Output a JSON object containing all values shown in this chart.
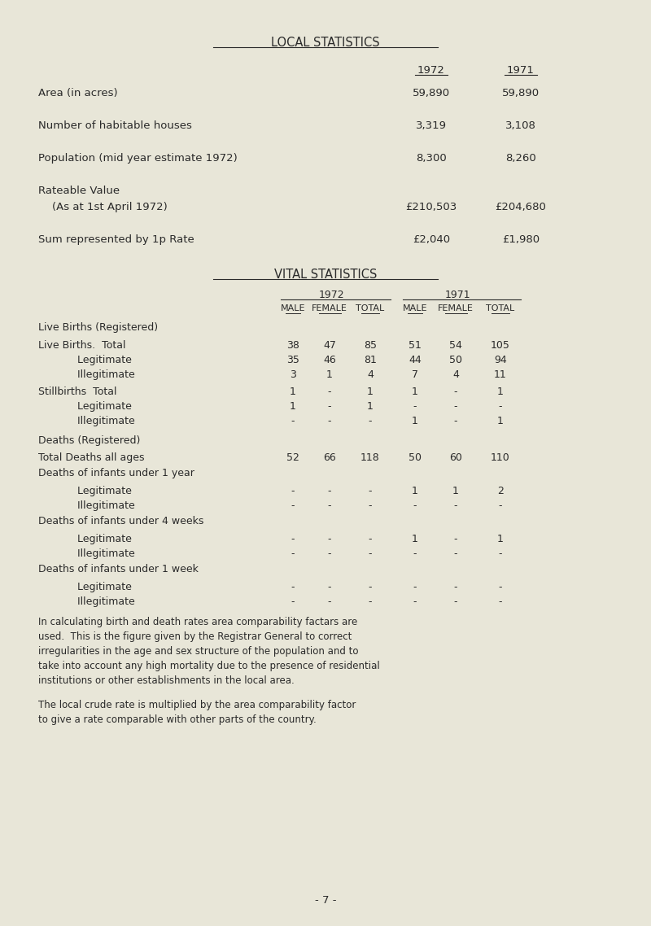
{
  "bg_color": "#e8e6d8",
  "text_color": "#2a2a2a",
  "font_family": "Courier New",
  "title1": "LOCAL STATISTICS",
  "title2": "VITAL STATISTICS",
  "local_headers": [
    "1972",
    "1971"
  ],
  "local_rows": [
    [
      "Area (in acres)",
      "59,890",
      "59,890"
    ],
    [
      "Number of habitable houses",
      "3,319",
      "3,108"
    ],
    [
      "Population (mid year estimate 1972)",
      "8,300",
      "8,260"
    ],
    [
      "Rateable Value\n    (As at 1st April 1972)",
      "£210,503",
      "£204,680"
    ],
    [
      "Sum represented by 1p Rate",
      "£2,040",
      "£1,980"
    ]
  ],
  "vital_col_headers": [
    "1972",
    "",
    "",
    "1971",
    "",
    ""
  ],
  "vital_sub_headers": [
    "MALE",
    "FEMALE",
    "TOTAL",
    "MALE",
    "FEMALE",
    "TOTAL"
  ],
  "vital_sections": [
    {
      "section_header": "Live Births (Registered)",
      "rows": [
        [
          "Live Births.  Total",
          "38",
          "47",
          "85",
          "51",
          "54",
          "105"
        ],
        [
          "            Legitimate",
          "35",
          "46",
          "81",
          "44",
          "50",
          "94"
        ],
        [
          "            Illegitimate",
          "3",
          "1",
          "4",
          "7",
          "4",
          "11"
        ]
      ]
    },
    {
      "section_header": null,
      "rows": [
        [
          "Stillbirths  Total",
          "1",
          "-",
          "1",
          "1",
          "-",
          "1"
        ],
        [
          "            Legitimate",
          "1",
          "-",
          "1",
          "-",
          "-",
          "-"
        ],
        [
          "            Illegitimate",
          "-",
          "-",
          "-",
          "1",
          "-",
          "1"
        ]
      ]
    },
    {
      "section_header": "Deaths (Registered)",
      "rows": []
    },
    {
      "section_header": null,
      "rows": [
        [
          "Total Deaths all ages",
          "52",
          "66",
          "118",
          "50",
          "60",
          "110"
        ]
      ]
    },
    {
      "section_header": "Deaths of infants under 1 year",
      "rows": [
        [
          "            Legitimate",
          "-",
          "-",
          "-",
          "1",
          "1",
          "2"
        ],
        [
          "            Illegitimate",
          "-",
          "-",
          "-",
          "-",
          "-",
          "-"
        ]
      ]
    },
    {
      "section_header": "Deaths of infants under 4 weeks",
      "rows": [
        [
          "            Legitimate",
          "-",
          "-",
          "-",
          "1",
          "-",
          "1"
        ],
        [
          "            Illegitimate",
          "-",
          "-",
          "-",
          "-",
          "-",
          "-"
        ]
      ]
    },
    {
      "section_header": "Deaths of infants under 1 week",
      "rows": [
        [
          "            Legitimate",
          "-",
          "-",
          "-",
          "-",
          "-",
          "-"
        ],
        [
          "            Illegitimate",
          "-",
          "-",
          "-",
          "-",
          "-",
          "-"
        ]
      ]
    }
  ],
  "footnote1": "In calculating birth and death rates area comparability factars are\nused.  This is the figure given by the Registrar General to correct\nirregularities in the age and sex structure of the population and to\ntake into account any high mortality due to the presence of residential\ninstitutions or other establishments in the local area.",
  "footnote2": "The local crude rate is multiplied by the area comparability factor\nto give a rate comparable with other parts of the country.",
  "page_number": "- 7 -"
}
